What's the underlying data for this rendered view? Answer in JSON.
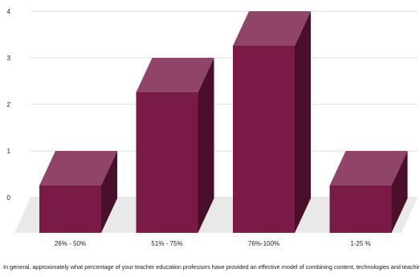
{
  "chart_data": {
    "type": "bar",
    "style": "3d",
    "categories": [
      "26% - 50%",
      "51% - 75%",
      "76%-100%",
      "1-25 %"
    ],
    "values": [
      1,
      3,
      4,
      1
    ],
    "ylim": [
      0,
      4
    ],
    "yticks": [
      "0",
      "1",
      "2",
      "3",
      "4"
    ],
    "xlabel": "In general, approximately what percentage of your teacher education professors have provided an effective model of combining content, technologies and teaching approaches in their teachi",
    "grid": true,
    "colors": {
      "front": "#7a1a47",
      "top": "#8f4468",
      "side": "#4a0f2b",
      "floor": "#e9e9e9"
    }
  }
}
